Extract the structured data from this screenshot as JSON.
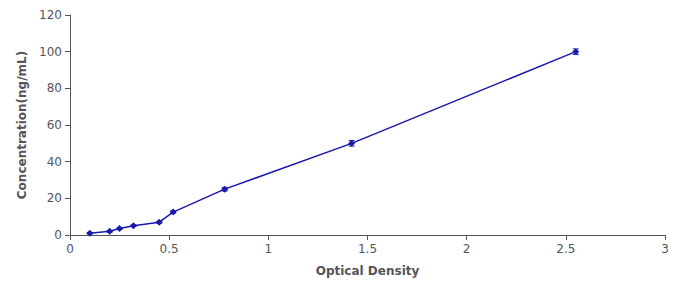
{
  "chart_data": {
    "type": "line",
    "x": [
      0.1,
      0.2,
      0.25,
      0.32,
      0.45,
      0.52,
      0.78,
      1.42,
      2.55
    ],
    "values": [
      1.0,
      2.0,
      3.5,
      5.0,
      7.0,
      12.5,
      25.0,
      50.0,
      100.0
    ],
    "yerr": [
      0.4,
      0.4,
      0.4,
      0.4,
      0.5,
      0.6,
      1.0,
      1.5,
      1.5
    ],
    "color": "#1a1aaa",
    "marker": "diamond",
    "xlabel": "Optical Density",
    "ylabel": "Concentration(ng/mL)",
    "xlim": [
      0,
      3
    ],
    "ylim": [
      0,
      120
    ],
    "xticks": [
      0,
      0.5,
      1,
      1.5,
      2,
      2.5,
      3
    ],
    "yticks": [
      0,
      20,
      40,
      60,
      80,
      100,
      120
    ],
    "grid": false
  }
}
